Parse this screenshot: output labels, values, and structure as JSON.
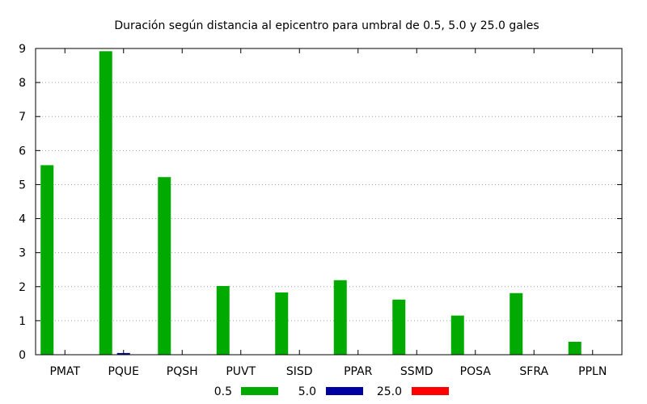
{
  "chart_data": {
    "type": "bar",
    "title": "Duración según distancia al epicentro para umbral de 0.5, 5.0 y 25.0 gales",
    "xlabel": "",
    "ylabel": "",
    "ylim": [
      0,
      9
    ],
    "yticks": [
      "0",
      "1",
      "2",
      "3",
      "4",
      "5",
      "6",
      "7",
      "8",
      "9"
    ],
    "grid": true,
    "legend_position": "bottom",
    "categories": [
      "PMAT",
      "PQUE",
      "PQSH",
      "PUVT",
      "SISD",
      "PPAR",
      "SSMD",
      "POSA",
      "SFRA",
      "PPLN"
    ],
    "series": [
      {
        "name": "0.5",
        "color": "#00aa00",
        "values": [
          5.57,
          8.92,
          5.22,
          2.02,
          1.83,
          2.19,
          1.62,
          1.15,
          1.81,
          0.38
        ]
      },
      {
        "name": "5.0",
        "color": "#0000a0",
        "values": [
          0,
          0.05,
          0,
          0,
          0,
          0,
          0,
          0,
          0,
          0
        ]
      },
      {
        "name": "25.0",
        "color": "#ff0000",
        "values": [
          0,
          0,
          0,
          0,
          0,
          0,
          0,
          0,
          0,
          0
        ]
      }
    ]
  }
}
